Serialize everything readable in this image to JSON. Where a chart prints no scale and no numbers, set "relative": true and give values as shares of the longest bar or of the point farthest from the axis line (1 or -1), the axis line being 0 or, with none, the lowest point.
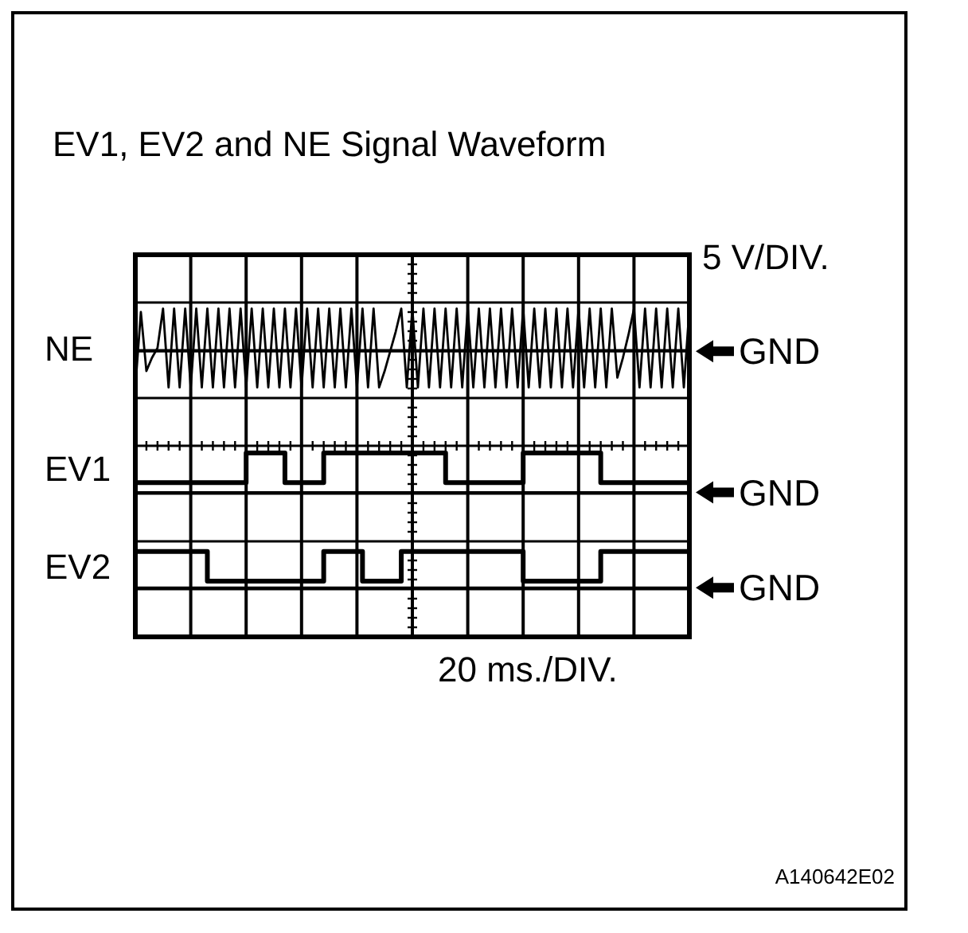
{
  "chart_data": {
    "type": "line",
    "title": "EV1, EV2 and NE Signal Waveform",
    "relative": true,
    "grid": true,
    "categories": [
      null,
      null,
      null,
      null,
      null,
      null,
      null,
      null,
      null,
      null,
      null,
      null,
      null,
      null,
      null,
      null,
      null,
      null,
      null,
      null,
      null,
      null,
      null,
      null,
      null,
      null,
      null,
      null,
      null,
      null,
      null,
      null,
      null,
      null,
      null,
      null,
      null,
      null,
      null,
      null,
      null,
      null,
      null,
      null,
      null,
      null,
      null,
      null,
      null,
      null,
      null,
      null,
      null,
      null,
      null,
      null,
      null,
      null,
      null,
      null,
      null,
      null,
      null,
      null,
      null,
      null,
      null,
      null,
      null,
      null,
      null,
      null,
      null,
      null,
      null,
      null,
      null,
      null,
      null,
      null,
      null,
      null,
      null,
      null,
      null,
      null,
      null,
      null,
      null,
      null,
      null,
      null,
      null,
      null,
      null,
      null,
      null,
      null,
      null,
      null,
      null
    ],
    "series": [
      {
        "name": "NE",
        "color": "#000000",
        "values": [
          0.76,
          0.99,
          0.81,
          0.85,
          0.88,
          1,
          0.76,
          1,
          0.76,
          1,
          0.76,
          1,
          0.76,
          1,
          0.76,
          1,
          0.76,
          1,
          0.76,
          1,
          0.76,
          1,
          0.76,
          1,
          0.76,
          1,
          0.76,
          1,
          0.76,
          1,
          0.76,
          1,
          0.76,
          1,
          0.76,
          1,
          0.76,
          1,
          0.76,
          1,
          0.76,
          1,
          0.76,
          1,
          0.76,
          0.81,
          0.87,
          0.93,
          1,
          0.76,
          1,
          0.76,
          1,
          0.76,
          1,
          0.76,
          1,
          0.76,
          1,
          0.76,
          1,
          0.76,
          1,
          0.76,
          1,
          0.76,
          1,
          0.76,
          1,
          0.76,
          1,
          0.76,
          1,
          0.76,
          1,
          0.76,
          1,
          0.76,
          1,
          0.76,
          1,
          0.76,
          1,
          0.76,
          1,
          0.76,
          1,
          0.79,
          0.85,
          0.92,
          1,
          0.76,
          1,
          0.76,
          1,
          0.76,
          1,
          0.76,
          1,
          0.76,
          1
        ]
      },
      {
        "name": "EV1",
        "type": "step",
        "color": "#000000",
        "values": [
          0.47,
          0.47,
          0.47,
          0.47,
          0.47,
          0.47,
          0.47,
          0.47,
          0.47,
          0.47,
          0.47,
          0.47,
          0.47,
          0.47,
          0.47,
          0.47,
          0.47,
          0.47,
          0.47,
          0.47,
          0.56,
          0.56,
          0.56,
          0.56,
          0.56,
          0.56,
          0.56,
          0.47,
          0.47,
          0.47,
          0.47,
          0.47,
          0.47,
          0.47,
          0.56,
          0.56,
          0.56,
          0.56,
          0.56,
          0.56,
          0.56,
          0.56,
          0.56,
          0.56,
          0.56,
          0.56,
          0.56,
          0.56,
          0.56,
          0.56,
          0.56,
          0.56,
          0.56,
          0.56,
          0.56,
          0.56,
          0.47,
          0.47,
          0.47,
          0.47,
          0.47,
          0.47,
          0.47,
          0.47,
          0.47,
          0.47,
          0.47,
          0.47,
          0.47,
          0.47,
          0.56,
          0.56,
          0.56,
          0.56,
          0.56,
          0.56,
          0.56,
          0.56,
          0.56,
          0.56,
          0.56,
          0.56,
          0.56,
          0.56,
          0.47,
          0.47,
          0.47,
          0.47,
          0.47,
          0.47,
          0.47,
          0.47,
          0.47,
          0.47,
          0.47,
          0.47,
          0.47,
          0.47,
          0.47,
          0.47,
          0.47
        ]
      },
      {
        "name": "EV2",
        "type": "step",
        "color": "#000000",
        "values": [
          0.26,
          0.26,
          0.26,
          0.26,
          0.26,
          0.26,
          0.26,
          0.26,
          0.26,
          0.26,
          0.26,
          0.26,
          0.26,
          0.17,
          0.17,
          0.17,
          0.17,
          0.17,
          0.17,
          0.17,
          0.17,
          0.17,
          0.17,
          0.17,
          0.17,
          0.17,
          0.17,
          0.17,
          0.17,
          0.17,
          0.17,
          0.17,
          0.17,
          0.17,
          0.26,
          0.26,
          0.26,
          0.26,
          0.26,
          0.26,
          0.26,
          0.17,
          0.17,
          0.17,
          0.17,
          0.17,
          0.17,
          0.17,
          0.26,
          0.26,
          0.26,
          0.26,
          0.26,
          0.26,
          0.26,
          0.26,
          0.26,
          0.26,
          0.26,
          0.26,
          0.26,
          0.26,
          0.26,
          0.26,
          0.26,
          0.26,
          0.26,
          0.26,
          0.26,
          0.26,
          0.17,
          0.17,
          0.17,
          0.17,
          0.17,
          0.17,
          0.17,
          0.17,
          0.17,
          0.17,
          0.17,
          0.17,
          0.17,
          0.17,
          0.26,
          0.26,
          0.26,
          0.26,
          0.26,
          0.26,
          0.26,
          0.26,
          0.26,
          0.26,
          0.26,
          0.26,
          0.26,
          0.26,
          0.26,
          0.26,
          0.26
        ]
      }
    ],
    "ref_lines": [
      {
        "axis": "y",
        "value": 0.87,
        "label": "GND"
      },
      {
        "axis": "y",
        "value": 0.44,
        "label": "GND"
      },
      {
        "axis": "y",
        "value": 0.15,
        "label": "GND"
      }
    ],
    "annotations": [
      "5 V/DIV.",
      "20 ms./DIV.",
      "A140642E02"
    ]
  }
}
